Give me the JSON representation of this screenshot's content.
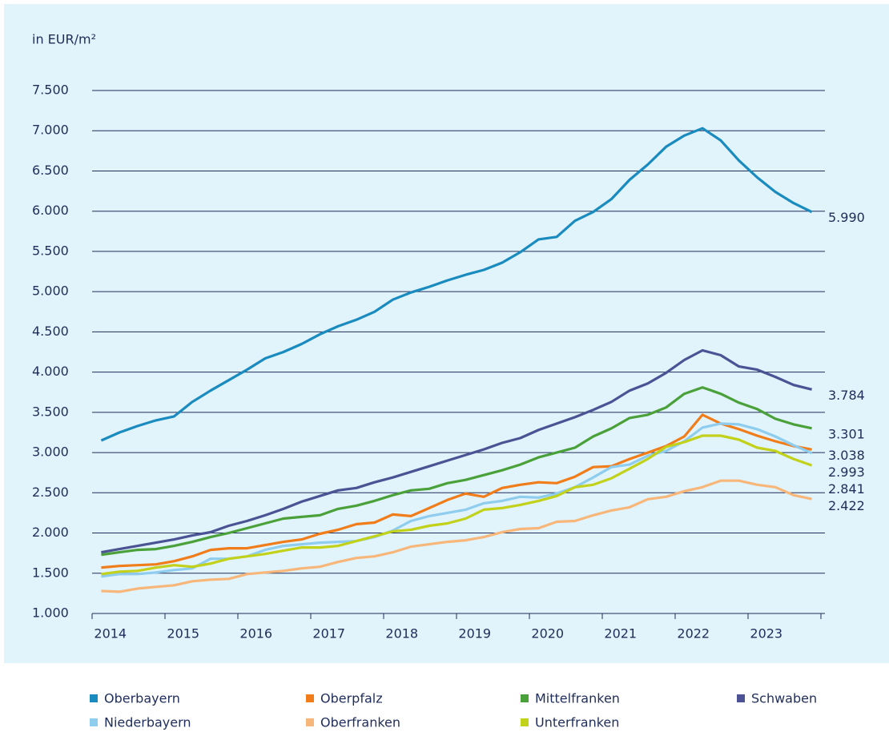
{
  "chart_data": {
    "type": "line",
    "axis_label": "in EUR/m²",
    "categories": [
      null,
      "2014",
      null,
      null,
      null,
      "2015",
      null,
      null,
      null,
      "2016",
      null,
      null,
      null,
      "2017",
      null,
      null,
      null,
      "2018",
      null,
      null,
      null,
      "2019",
      null,
      null,
      null,
      "2020",
      null,
      null,
      null,
      "2021",
      null,
      null,
      null,
      "2022",
      null,
      null,
      null,
      "2023",
      null,
      null
    ],
    "ylim": [
      1000,
      7500
    ],
    "yticks": [
      {
        "value": 1000,
        "label": "1.000"
      },
      {
        "value": 1500,
        "label": "1.500"
      },
      {
        "value": 2000,
        "label": "2.000"
      },
      {
        "value": 2500,
        "label": "2.500"
      },
      {
        "value": 3000,
        "label": "3.000"
      },
      {
        "value": 3500,
        "label": "3.500"
      },
      {
        "value": 4000,
        "label": "4.000"
      },
      {
        "value": 4500,
        "label": "4.500"
      },
      {
        "value": 5000,
        "label": "5.000"
      },
      {
        "value": 5500,
        "label": "5.500"
      },
      {
        "value": 6000,
        "label": "6.000"
      },
      {
        "value": 6500,
        "label": "6.500"
      },
      {
        "value": 7000,
        "label": "7.000"
      },
      {
        "value": 7500,
        "label": "7.500"
      }
    ],
    "grid": true,
    "series": [
      {
        "name": "Oberbayern",
        "color": "#1a8bbf",
        "values": [
          3150,
          3250,
          3330,
          3400,
          3450,
          3630,
          3770,
          3900,
          4030,
          4170,
          4250,
          4350,
          4470,
          4570,
          4650,
          4750,
          4900,
          4990,
          5060,
          5140,
          5210,
          5270,
          5360,
          5490,
          5650,
          5680,
          5880,
          5990,
          6150,
          6390,
          6580,
          6800,
          6940,
          7030,
          6880,
          6630,
          6420,
          6240,
          6100,
          5990
        ],
        "value_labels": [
          null,
          null,
          null,
          null,
          null,
          null,
          null,
          null,
          null,
          null,
          null,
          null,
          null,
          null,
          null,
          null,
          null,
          null,
          null,
          null,
          null,
          null,
          null,
          null,
          null,
          null,
          null,
          null,
          null,
          null,
          null,
          null,
          null,
          null,
          null,
          null,
          null,
          null,
          null,
          "5.990"
        ]
      },
      {
        "name": "Oberpfalz",
        "color": "#f07d1a",
        "values": [
          1570,
          1590,
          1600,
          1610,
          1650,
          1710,
          1790,
          1810,
          1810,
          1850,
          1890,
          1920,
          1990,
          2040,
          2110,
          2130,
          2230,
          2210,
          2310,
          2410,
          2490,
          2450,
          2560,
          2600,
          2630,
          2620,
          2700,
          2820,
          2830,
          2920,
          3000,
          3080,
          3200,
          3470,
          3360,
          3290,
          3210,
          3140,
          3080,
          3038
        ],
        "value_labels": [
          null,
          null,
          null,
          null,
          null,
          null,
          null,
          null,
          null,
          null,
          null,
          null,
          null,
          null,
          null,
          null,
          null,
          null,
          null,
          null,
          null,
          null,
          null,
          null,
          null,
          null,
          null,
          null,
          null,
          null,
          null,
          null,
          null,
          null,
          null,
          null,
          null,
          null,
          null,
          "3.038"
        ]
      },
      {
        "name": "Mittelfranken",
        "color": "#4aa13a",
        "values": [
          1730,
          1760,
          1790,
          1800,
          1840,
          1890,
          1950,
          2000,
          2060,
          2120,
          2180,
          2200,
          2220,
          2300,
          2340,
          2400,
          2470,
          2530,
          2550,
          2620,
          2660,
          2720,
          2780,
          2850,
          2940,
          3000,
          3060,
          3200,
          3300,
          3430,
          3470,
          3560,
          3730,
          3810,
          3730,
          3620,
          3540,
          3420,
          3350,
          3301
        ],
        "value_labels": [
          null,
          null,
          null,
          null,
          null,
          null,
          null,
          null,
          null,
          null,
          null,
          null,
          null,
          null,
          null,
          null,
          null,
          null,
          null,
          null,
          null,
          null,
          null,
          null,
          null,
          null,
          null,
          null,
          null,
          null,
          null,
          null,
          null,
          null,
          null,
          null,
          null,
          null,
          null,
          "3.301"
        ]
      },
      {
        "name": "Schwaben",
        "color": "#4b5394",
        "values": [
          1760,
          1800,
          1840,
          1880,
          1920,
          1970,
          2010,
          2090,
          2150,
          2220,
          2300,
          2390,
          2460,
          2530,
          2560,
          2630,
          2690,
          2760,
          2830,
          2900,
          2970,
          3040,
          3120,
          3180,
          3280,
          3360,
          3440,
          3530,
          3630,
          3770,
          3860,
          3990,
          4150,
          4270,
          4210,
          4070,
          4030,
          3940,
          3840,
          3784
        ],
        "value_labels": [
          null,
          null,
          null,
          null,
          null,
          null,
          null,
          null,
          null,
          null,
          null,
          null,
          null,
          null,
          null,
          null,
          null,
          null,
          null,
          null,
          null,
          null,
          null,
          null,
          null,
          null,
          null,
          null,
          null,
          null,
          null,
          null,
          null,
          null,
          null,
          null,
          null,
          null,
          null,
          "3.784"
        ]
      },
      {
        "name": "Niederbayern",
        "color": "#8fcdef",
        "values": [
          1460,
          1490,
          1490,
          1510,
          1540,
          1560,
          1680,
          1680,
          1710,
          1790,
          1840,
          1860,
          1880,
          1890,
          1900,
          1950,
          2030,
          2150,
          2210,
          2250,
          2290,
          2370,
          2400,
          2450,
          2440,
          2490,
          2570,
          2690,
          2820,
          2850,
          2960,
          3020,
          3140,
          3310,
          3360,
          3350,
          3290,
          3200,
          3090,
          2993
        ],
        "value_labels": [
          null,
          null,
          null,
          null,
          null,
          null,
          null,
          null,
          null,
          null,
          null,
          null,
          null,
          null,
          null,
          null,
          null,
          null,
          null,
          null,
          null,
          null,
          null,
          null,
          null,
          null,
          null,
          null,
          null,
          null,
          null,
          null,
          null,
          null,
          null,
          null,
          null,
          null,
          null,
          "2.993"
        ]
      },
      {
        "name": "Oberfranken",
        "color": "#f7b67a",
        "values": [
          1280,
          1270,
          1310,
          1330,
          1350,
          1400,
          1420,
          1430,
          1490,
          1510,
          1530,
          1560,
          1580,
          1640,
          1690,
          1710,
          1760,
          1830,
          1860,
          1890,
          1910,
          1950,
          2010,
          2050,
          2060,
          2140,
          2150,
          2220,
          2280,
          2320,
          2420,
          2450,
          2520,
          2570,
          2650,
          2650,
          2600,
          2570,
          2470,
          2422
        ],
        "value_labels": [
          null,
          null,
          null,
          null,
          null,
          null,
          null,
          null,
          null,
          null,
          null,
          null,
          null,
          null,
          null,
          null,
          null,
          null,
          null,
          null,
          null,
          null,
          null,
          null,
          null,
          null,
          null,
          null,
          null,
          null,
          null,
          null,
          null,
          null,
          null,
          null,
          null,
          null,
          null,
          "2.422"
        ]
      },
      {
        "name": "Unterfranken",
        "color": "#c2d11a",
        "values": [
          1490,
          1520,
          1530,
          1570,
          1600,
          1580,
          1620,
          1680,
          1710,
          1740,
          1780,
          1820,
          1820,
          1840,
          1900,
          1960,
          2020,
          2040,
          2090,
          2120,
          2180,
          2290,
          2310,
          2350,
          2400,
          2460,
          2570,
          2600,
          2680,
          2800,
          2920,
          3070,
          3130,
          3210,
          3210,
          3160,
          3060,
          3020,
          2920,
          2841
        ],
        "value_labels": [
          null,
          null,
          null,
          null,
          null,
          null,
          null,
          null,
          null,
          null,
          null,
          null,
          null,
          null,
          null,
          null,
          null,
          null,
          null,
          null,
          null,
          null,
          null,
          null,
          null,
          null,
          null,
          null,
          null,
          null,
          null,
          null,
          null,
          null,
          null,
          null,
          null,
          null,
          null,
          "2.841"
        ]
      }
    ]
  }
}
